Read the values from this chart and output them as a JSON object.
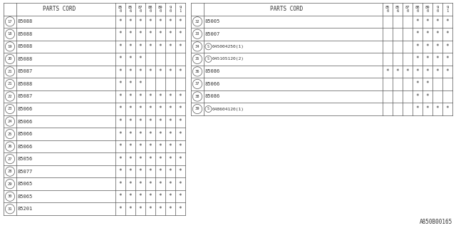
{
  "title": "A850B00165",
  "bg_color": "#ffffff",
  "text_color": "#333333",
  "border_color": "#555555",
  "left_table": {
    "col_headers": [
      "85\n0",
      "85\n6",
      "87\n0",
      "88\n0",
      "89\n0",
      "9\n0",
      "9\n1"
    ],
    "rows": [
      {
        "num": "17",
        "part": "85088",
        "special": false,
        "marks": [
          1,
          1,
          1,
          1,
          1,
          1,
          1
        ]
      },
      {
        "num": "18",
        "part": "85088",
        "special": false,
        "marks": [
          1,
          1,
          1,
          1,
          1,
          1,
          1
        ]
      },
      {
        "num": "19",
        "part": "85088",
        "special": false,
        "marks": [
          1,
          1,
          1,
          1,
          1,
          1,
          1
        ]
      },
      {
        "num": "20",
        "part": "85088",
        "special": false,
        "marks": [
          1,
          1,
          1,
          0,
          0,
          0,
          0
        ]
      },
      {
        "num": "21",
        "part": "85087",
        "special": false,
        "marks": [
          1,
          1,
          1,
          1,
          1,
          1,
          1
        ],
        "sub": true
      },
      {
        "num": "21",
        "part": "85088",
        "special": false,
        "marks": [
          1,
          1,
          1,
          0,
          0,
          0,
          0
        ],
        "sub2": true
      },
      {
        "num": "22",
        "part": "85087",
        "special": false,
        "marks": [
          1,
          1,
          1,
          1,
          1,
          1,
          1
        ]
      },
      {
        "num": "23",
        "part": "85066",
        "special": false,
        "marks": [
          1,
          1,
          1,
          1,
          1,
          1,
          1
        ]
      },
      {
        "num": "24",
        "part": "85066",
        "special": false,
        "marks": [
          1,
          1,
          1,
          1,
          1,
          1,
          1
        ]
      },
      {
        "num": "25",
        "part": "85066",
        "special": false,
        "marks": [
          1,
          1,
          1,
          1,
          1,
          1,
          1
        ]
      },
      {
        "num": "26",
        "part": "85066",
        "special": false,
        "marks": [
          1,
          1,
          1,
          1,
          1,
          1,
          1
        ]
      },
      {
        "num": "27",
        "part": "85056",
        "special": false,
        "marks": [
          1,
          1,
          1,
          1,
          1,
          1,
          1
        ]
      },
      {
        "num": "28",
        "part": "85077",
        "special": false,
        "marks": [
          1,
          1,
          1,
          1,
          1,
          1,
          1
        ]
      },
      {
        "num": "29",
        "part": "85065",
        "special": false,
        "marks": [
          1,
          1,
          1,
          1,
          1,
          1,
          1
        ]
      },
      {
        "num": "30",
        "part": "85065",
        "special": false,
        "marks": [
          1,
          1,
          1,
          1,
          1,
          1,
          1
        ]
      },
      {
        "num": "31",
        "part": "85201",
        "special": false,
        "marks": [
          1,
          1,
          1,
          1,
          1,
          1,
          1
        ]
      }
    ]
  },
  "right_table": {
    "col_headers": [
      "85\n0",
      "85\n6",
      "87\n0",
      "88\n0",
      "89\n0",
      "9\n0",
      "9\n1"
    ],
    "rows": [
      {
        "num": "32",
        "part": "85005",
        "special": false,
        "marks": [
          0,
          0,
          0,
          1,
          1,
          1,
          1
        ]
      },
      {
        "num": "33",
        "part": "85007",
        "special": false,
        "marks": [
          0,
          0,
          0,
          1,
          1,
          1,
          1
        ]
      },
      {
        "num": "34",
        "part": "045004250(1)",
        "special": true,
        "marks": [
          0,
          0,
          0,
          1,
          1,
          1,
          1
        ]
      },
      {
        "num": "35",
        "part": "045105120(2)",
        "special": true,
        "marks": [
          0,
          0,
          0,
          1,
          1,
          1,
          1
        ]
      },
      {
        "num": "36",
        "part": "85086",
        "special": false,
        "marks": [
          1,
          1,
          1,
          1,
          1,
          1,
          1
        ]
      },
      {
        "num": "37",
        "part": "85066",
        "special": false,
        "marks": [
          0,
          0,
          0,
          1,
          1,
          0,
          0
        ]
      },
      {
        "num": "38",
        "part": "85086",
        "special": false,
        "marks": [
          0,
          0,
          0,
          1,
          1,
          0,
          0
        ]
      },
      {
        "num": "39",
        "part": "048604120(1)",
        "special": true,
        "marks": [
          0,
          0,
          0,
          1,
          1,
          1,
          1
        ]
      }
    ]
  }
}
